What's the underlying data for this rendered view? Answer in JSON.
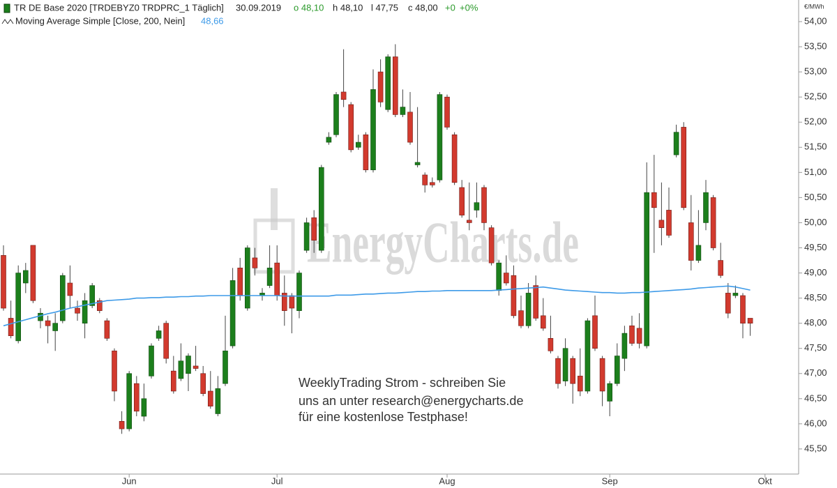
{
  "chart_data": {
    "type": "candlestick",
    "title": "TR DE Base 2020 [TRDEBYZ0 TRDPRC_1 Täglich]",
    "date": "30.09.2019",
    "ohlc_labels": [
      "o 48,10",
      "h 48,10",
      "l 47,75",
      "c 48,00",
      "+0",
      "+0%"
    ],
    "y_unit": "€/MWh",
    "watermark": "EnergyCharts.de",
    "annotation": [
      "WeeklyTrading Strom - schreiben Sie",
      "uns an unter research@energycharts.de",
      "für eine kostenlose Testphase!"
    ],
    "colors": {
      "up": "#1c7f1c",
      "down": "#d23a2e"
    },
    "categories": [
      null,
      null,
      null,
      null,
      null,
      null,
      null,
      null,
      null,
      null,
      null,
      null,
      null,
      null,
      null,
      null,
      null,
      "Jun",
      null,
      null,
      null,
      null,
      null,
      null,
      null,
      null,
      null,
      null,
      null,
      null,
      null,
      null,
      null,
      null,
      null,
      null,
      null,
      "Jul",
      null,
      null,
      null,
      null,
      null,
      null,
      null,
      null,
      null,
      null,
      null,
      null,
      null,
      null,
      null,
      null,
      null,
      null,
      null,
      null,
      null,
      null,
      "Aug",
      null,
      null,
      null,
      null,
      null,
      null,
      null,
      null,
      null,
      null,
      null,
      null,
      null,
      null,
      null,
      null,
      null,
      null,
      null,
      null,
      null,
      "Sep",
      null,
      null,
      null,
      null,
      null,
      null,
      null,
      null,
      null,
      null,
      null,
      null,
      null,
      null,
      null,
      null,
      null,
      null,
      null,
      null,
      "Okt"
    ],
    "open": [
      49.35,
      48.1,
      47.65,
      48.8,
      49.55,
      48.05,
      48.05,
      47.85,
      48.05,
      48.8,
      48.3,
      48.0,
      48.35,
      48.45,
      48.05,
      47.45,
      46.05,
      45.9,
      46.8,
      46.15,
      46.95,
      47.7,
      48.0,
      47.05,
      46.9,
      47.0,
      47.15,
      47.0,
      46.65,
      46.2,
      46.8,
      47.55,
      49.1,
      48.3,
      49.3,
      48.55,
      48.75,
      49.2,
      48.6,
      48.55,
      48.25,
      49.45,
      50.1,
      49.45,
      51.6,
      51.75,
      52.6,
      52.35,
      51.5,
      51.75,
      51.05,
      53.0,
      52.25,
      53.3,
      52.15,
      52.2,
      51.15,
      50.95,
      50.8,
      50.85,
      52.5,
      51.75,
      50.7,
      50.05,
      50.25,
      50.7,
      49.9,
      48.65,
      49.0,
      48.95,
      48.25,
      47.95,
      48.75,
      48.15,
      47.7,
      47.3,
      46.85,
      47.3,
      46.95,
      46.65,
      48.15,
      47.3,
      46.45,
      46.8,
      47.3,
      47.95,
      47.9,
      47.55,
      50.6,
      50.05,
      50.25,
      51.35,
      51.9,
      50.0,
      49.25,
      50.0,
      50.5,
      49.25,
      48.6,
      48.55,
      48.55,
      48.1,
      null,
      null
    ],
    "high": [
      49.55,
      48.45,
      49.15,
      49.2,
      49.55,
      48.3,
      48.15,
      48.2,
      49.0,
      49.15,
      48.45,
      48.6,
      48.8,
      48.5,
      48.1,
      47.5,
      46.25,
      47.05,
      46.95,
      46.8,
      47.6,
      47.95,
      48.05,
      47.35,
      47.6,
      47.4,
      47.55,
      47.15,
      47.05,
      46.95,
      48.15,
      49.1,
      49.3,
      49.55,
      49.5,
      48.7,
      49.55,
      49.55,
      48.95,
      48.6,
      49.05,
      50.1,
      50.25,
      51.15,
      51.8,
      52.6,
      53.45,
      52.4,
      51.75,
      51.8,
      53.05,
      53.25,
      53.35,
      53.55,
      52.65,
      52.6,
      52.3,
      51.0,
      50.9,
      52.6,
      52.55,
      51.8,
      50.85,
      50.8,
      50.8,
      50.75,
      49.95,
      49.25,
      49.35,
      49.15,
      48.55,
      48.8,
      48.95,
      48.5,
      48.15,
      47.35,
      47.7,
      47.35,
      47.5,
      48.1,
      48.55,
      47.35,
      46.85,
      47.6,
      47.95,
      48.15,
      48.2,
      51.2,
      51.35,
      50.8,
      50.7,
      51.95,
      52.0,
      50.55,
      50.25,
      50.85,
      50.55,
      49.6,
      48.8,
      48.75,
      48.6,
      48.1,
      null,
      null
    ],
    "low": [
      48.25,
      47.7,
      47.6,
      48.6,
      48.4,
      47.9,
      47.6,
      47.45,
      48.0,
      48.3,
      48.05,
      47.7,
      48.3,
      48.2,
      47.65,
      46.45,
      45.8,
      45.85,
      46.15,
      46.05,
      46.9,
      47.65,
      47.2,
      46.6,
      46.85,
      46.65,
      47.05,
      46.55,
      46.3,
      46.15,
      46.75,
      47.5,
      48.45,
      48.25,
      48.95,
      48.45,
      48.7,
      48.45,
      47.95,
      47.8,
      48.1,
      49.4,
      49.4,
      49.4,
      51.55,
      51.7,
      52.3,
      51.4,
      51.45,
      51.0,
      51.0,
      52.3,
      52.2,
      52.1,
      52.1,
      51.55,
      51.1,
      50.6,
      50.7,
      50.8,
      51.85,
      50.75,
      50.1,
      49.85,
      50.1,
      49.85,
      49.15,
      48.55,
      48.75,
      48.1,
      47.9,
      47.9,
      48.05,
      47.85,
      47.4,
      46.7,
      46.75,
      46.4,
      46.55,
      46.6,
      47.45,
      46.35,
      46.15,
      46.75,
      47.05,
      47.55,
      47.5,
      47.5,
      49.4,
      49.55,
      49.7,
      51.3,
      50.25,
      49.05,
      49.2,
      49.85,
      49.45,
      48.9,
      48.1,
      48.5,
      47.7,
      47.75,
      null,
      null
    ],
    "close": [
      48.3,
      47.75,
      49.0,
      49.05,
      48.45,
      48.2,
      47.95,
      48.0,
      48.95,
      48.55,
      48.2,
      48.45,
      48.75,
      48.25,
      47.7,
      46.65,
      45.9,
      47.0,
      46.25,
      46.5,
      47.55,
      47.85,
      47.3,
      46.65,
      47.25,
      47.35,
      47.1,
      46.6,
      46.35,
      46.7,
      47.45,
      48.85,
      48.55,
      49.5,
      49.1,
      48.6,
      49.1,
      48.55,
      48.25,
      48.3,
      49.0,
      50.0,
      49.65,
      51.1,
      51.7,
      52.55,
      52.45,
      51.45,
      51.6,
      51.05,
      52.65,
      52.4,
      53.3,
      52.15,
      52.3,
      51.6,
      51.2,
      50.75,
      50.75,
      52.55,
      51.9,
      50.8,
      50.15,
      50.0,
      50.4,
      50.0,
      49.2,
      49.2,
      48.8,
      48.15,
      47.95,
      48.6,
      48.1,
      47.9,
      47.45,
      46.8,
      47.5,
      46.8,
      46.65,
      48.05,
      47.5,
      46.65,
      46.8,
      47.35,
      47.8,
      47.6,
      47.6,
      50.6,
      50.3,
      49.9,
      49.75,
      51.8,
      50.3,
      49.25,
      49.55,
      50.6,
      49.5,
      48.95,
      48.2,
      48.6,
      48.0,
      48.0,
      null,
      null
    ],
    "series": [
      {
        "name": "Moving Average Simple [Close, 200, Nein]",
        "color": "#3d9ae8",
        "value_label": "48,66",
        "values": [
          47.95,
          47.99,
          48.03,
          48.07,
          48.11,
          48.15,
          48.19,
          48.22,
          48.26,
          48.3,
          48.33,
          48.36,
          48.39,
          48.42,
          48.45,
          48.46,
          48.47,
          48.48,
          48.5,
          48.5,
          48.51,
          48.51,
          48.52,
          48.52,
          48.53,
          48.53,
          48.54,
          48.54,
          48.55,
          48.55,
          48.55,
          48.55,
          48.55,
          48.55,
          48.55,
          48.55,
          48.55,
          48.55,
          48.54,
          48.54,
          48.54,
          48.54,
          48.54,
          48.54,
          48.54,
          48.56,
          48.56,
          48.56,
          48.57,
          48.58,
          48.58,
          48.59,
          48.6,
          48.6,
          48.61,
          48.62,
          48.63,
          48.63,
          48.64,
          48.64,
          48.65,
          48.65,
          48.65,
          48.65,
          48.65,
          48.65,
          48.65,
          48.66,
          48.67,
          48.68,
          48.69,
          48.7,
          48.71,
          48.72,
          48.7,
          48.68,
          48.66,
          48.65,
          48.64,
          48.63,
          48.62,
          48.61,
          48.61,
          48.6,
          48.6,
          48.61,
          48.61,
          48.62,
          48.63,
          48.64,
          48.65,
          48.66,
          48.67,
          48.68,
          48.7,
          48.71,
          48.72,
          48.73,
          48.74,
          48.72,
          48.69,
          48.66,
          null,
          null
        ]
      }
    ],
    "ylim": [
      45.0,
      54.43
    ],
    "yticks": [
      {
        "value": 54,
        "label": "54,00"
      },
      {
        "value": 53.5,
        "label": "53,50"
      },
      {
        "value": 53,
        "label": "53,00"
      },
      {
        "value": 52.5,
        "label": "52,50"
      },
      {
        "value": 52,
        "label": "52,00"
      },
      {
        "value": 51.5,
        "label": "51,50"
      },
      {
        "value": 51,
        "label": "51,00"
      },
      {
        "value": 50.5,
        "label": "50,50"
      },
      {
        "value": 50,
        "label": "50,00"
      },
      {
        "value": 49.5,
        "label": "49,50"
      },
      {
        "value": 49,
        "label": "49,00"
      },
      {
        "value": 48.5,
        "label": "48,50"
      },
      {
        "value": 48,
        "label": "48,00"
      },
      {
        "value": 47.5,
        "label": "47,50"
      },
      {
        "value": 47,
        "label": "47,00"
      },
      {
        "value": 46.5,
        "label": "46,50"
      },
      {
        "value": 46,
        "label": "46,00"
      },
      {
        "value": 45.5,
        "label": "45,50"
      }
    ],
    "grid": false
  }
}
